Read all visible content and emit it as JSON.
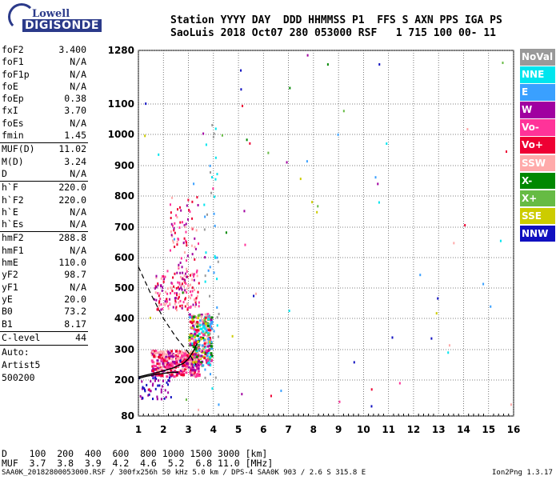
{
  "logo": {
    "top": "Lowell",
    "bottom": "DIGISONDE"
  },
  "header": {
    "line1": "Station YYYY DAY  DDD HHMMSS P1  FFS S AXN PPS IGA PS",
    "line2": "SaoLuis 2018 Oct07 280 053000 RSF   1 715 100 00- 11"
  },
  "params": {
    "group1": [
      {
        "k": "foF2",
        "v": "3.400"
      },
      {
        "k": "foF1",
        "v": "N/A"
      },
      {
        "k": "foF1p",
        "v": "N/A"
      },
      {
        "k": "foE",
        "v": "N/A"
      },
      {
        "k": "foEp",
        "v": "0.38"
      },
      {
        "k": "fxI",
        "v": "3.70"
      },
      {
        "k": "foEs",
        "v": "N/A"
      },
      {
        "k": "fmin",
        "v": "1.45"
      }
    ],
    "group2": [
      {
        "k": "MUF(D)",
        "v": "11.02"
      },
      {
        "k": "M(D)",
        "v": "3.24"
      },
      {
        "k": "D",
        "v": "N/A"
      }
    ],
    "group3": [
      {
        "k": "h`F",
        "v": "220.0"
      },
      {
        "k": "h`F2",
        "v": "220.0"
      },
      {
        "k": "h`E",
        "v": "N/A"
      },
      {
        "k": "h`Es",
        "v": "N/A"
      }
    ],
    "group4": [
      {
        "k": "hmF2",
        "v": "288.8"
      },
      {
        "k": "hmF1",
        "v": "N/A"
      },
      {
        "k": "hmE",
        "v": "110.0"
      },
      {
        "k": "yF2",
        "v": "98.7"
      },
      {
        "k": "yF1",
        "v": "N/A"
      },
      {
        "k": "yE",
        "v": "20.0"
      },
      {
        "k": "B0",
        "v": "73.2"
      },
      {
        "k": "B1",
        "v": "8.17"
      }
    ],
    "clevel": {
      "k": "C-level",
      "v": "44"
    },
    "auto": [
      "Auto:",
      "Artist5",
      "500200"
    ]
  },
  "legend": [
    {
      "label": "NoVal",
      "color": "#999999"
    },
    {
      "label": "NNE",
      "color": "#00e5ee"
    },
    {
      "label": "E",
      "color": "#3aa0ff"
    },
    {
      "label": "W",
      "color": "#a000a0"
    },
    {
      "label": "Vo-",
      "color": "#ff3399"
    },
    {
      "label": "Vo+",
      "color": "#ee0033"
    },
    {
      "label": "SSW",
      "color": "#ffaaaa"
    },
    {
      "label": "X-",
      "color": "#008800"
    },
    {
      "label": "X+",
      "color": "#66bb44"
    },
    {
      "label": "SSE",
      "color": "#cccc00"
    },
    {
      "label": "NNW",
      "color": "#1010c0"
    }
  ],
  "footer": {
    "row1": "D    100  200  400  600  800 1000 1500 3000 [km]",
    "row2": "MUF  3.7  3.8  3.9  4.2  4.6  5.2  6.8 11.0 [MHz]",
    "filename": "SAA0K_20182800053000.RSF / 300fx256h 50 kHz 5.0 km / DPS-4 SAA0K 903 / 2.6 S 315.8 E",
    "version": "Ion2Png 1.3.17"
  },
  "chart_data": {
    "type": "scatter",
    "xlim": [
      1,
      16
    ],
    "x_ticks": [
      1,
      2,
      3,
      4,
      5,
      6,
      7,
      8,
      9,
      10,
      11,
      12,
      13,
      14,
      15,
      16
    ],
    "y_ticks": [
      80,
      200,
      300,
      400,
      500,
      600,
      700,
      800,
      900,
      1000,
      1100,
      1280
    ],
    "grid": true,
    "traces": [
      {
        "name": "profile-left",
        "x": [
          1.0,
          1.3,
          1.7,
          2.0,
          2.3,
          2.6
        ],
        "y": [
          205,
          212,
          218,
          222,
          225,
          226
        ]
      },
      {
        "name": "profile-main",
        "x": [
          1.0,
          1.6,
          2.0,
          2.4,
          2.8,
          3.0,
          3.2,
          3.35
        ],
        "y": [
          210,
          222,
          230,
          240,
          255,
          270,
          295,
          320
        ]
      },
      {
        "name": "dashed-line",
        "x": [
          1.0,
          1.5,
          2.0,
          2.5,
          3.0,
          3.3
        ],
        "y": [
          570,
          480,
          400,
          340,
          290,
          250
        ]
      },
      {
        "name": "F-trace-x",
        "x": [
          1.8,
          2.2,
          2.6,
          3.0,
          3.2,
          3.4,
          3.6,
          3.8,
          3.9
        ],
        "y": [
          230,
          240,
          250,
          270,
          290,
          320,
          360,
          400,
          420
        ]
      }
    ]
  }
}
